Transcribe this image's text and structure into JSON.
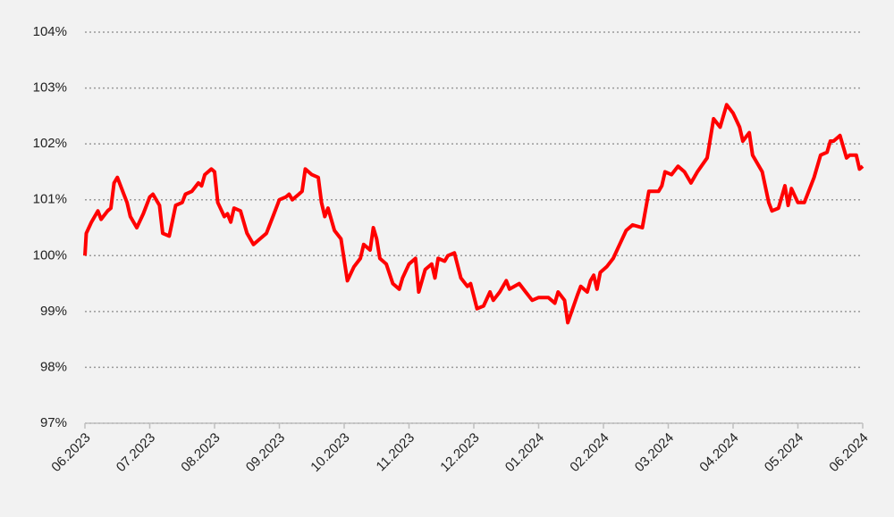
{
  "chart_data": {
    "type": "line",
    "x": [
      0,
      0.02,
      0.1,
      0.2,
      0.25,
      0.35,
      0.4,
      0.45,
      0.5,
      0.6,
      0.65,
      0.7,
      0.8,
      0.9,
      1.0,
      1.05,
      1.15,
      1.2,
      1.3,
      1.4,
      1.5,
      1.55,
      1.65,
      1.75,
      1.8,
      1.85,
      1.95,
      2.0,
      2.05,
      2.15,
      2.2,
      2.25,
      2.3,
      2.4,
      2.5,
      2.6,
      2.7,
      2.8,
      2.9,
      3.0,
      3.1,
      3.15,
      3.2,
      3.3,
      3.35,
      3.4,
      3.5,
      3.6,
      3.65,
      3.7,
      3.75,
      3.85,
      3.95,
      4.05,
      4.15,
      4.25,
      4.3,
      4.4,
      4.45,
      4.5,
      4.55,
      4.65,
      4.75,
      4.85,
      4.9,
      5.0,
      5.1,
      5.15,
      5.25,
      5.35,
      5.4,
      5.45,
      5.55,
      5.6,
      5.7,
      5.8,
      5.9,
      5.95,
      6.05,
      6.15,
      6.25,
      6.3,
      6.4,
      6.5,
      6.55,
      6.7,
      6.8,
      6.9,
      7.0,
      7.15,
      7.25,
      7.3,
      7.4,
      7.45,
      7.6,
      7.65,
      7.75,
      7.8,
      7.85,
      7.9,
      7.95,
      8.05,
      8.15,
      8.25,
      8.35,
      8.45,
      8.6,
      8.7,
      8.85,
      8.9,
      8.95,
      9.05,
      9.15,
      9.25,
      9.35,
      9.45,
      9.6,
      9.7,
      9.8,
      9.9,
      10.0,
      10.1,
      10.15,
      10.25,
      10.3,
      10.45,
      10.55,
      10.6,
      10.7,
      10.8,
      10.85,
      10.9,
      11.0,
      11.1,
      11.25,
      11.35,
      11.45,
      11.5,
      11.55,
      11.65,
      11.75,
      11.8,
      11.9,
      11.95,
      12.0
    ],
    "series": [
      {
        "color": "#ff0000",
        "values": [
          100.0,
          100.4,
          100.6,
          100.8,
          100.65,
          100.8,
          100.85,
          101.3,
          101.4,
          101.1,
          100.95,
          100.7,
          100.5,
          100.75,
          101.05,
          101.1,
          100.9,
          100.4,
          100.35,
          100.9,
          100.95,
          101.1,
          101.15,
          101.3,
          101.25,
          101.45,
          101.55,
          101.5,
          100.95,
          100.7,
          100.75,
          100.6,
          100.85,
          100.8,
          100.4,
          100.2,
          100.3,
          100.4,
          100.7,
          101.0,
          101.05,
          101.1,
          101.0,
          101.1,
          101.15,
          101.55,
          101.45,
          101.4,
          100.95,
          100.7,
          100.85,
          100.45,
          100.3,
          99.55,
          99.8,
          99.95,
          100.2,
          100.1,
          100.5,
          100.3,
          99.95,
          99.85,
          99.5,
          99.4,
          99.6,
          99.85,
          99.95,
          99.35,
          99.75,
          99.85,
          99.6,
          99.95,
          99.9,
          100.0,
          100.05,
          99.6,
          99.45,
          99.5,
          99.05,
          99.1,
          99.35,
          99.2,
          99.35,
          99.55,
          99.4,
          99.5,
          99.35,
          99.2,
          99.25,
          99.25,
          99.15,
          99.35,
          99.2,
          98.8,
          99.3,
          99.45,
          99.35,
          99.55,
          99.65,
          99.4,
          99.7,
          99.8,
          99.95,
          100.2,
          100.45,
          100.55,
          100.5,
          101.15,
          101.15,
          101.25,
          101.5,
          101.45,
          101.6,
          101.5,
          101.3,
          101.5,
          101.75,
          102.45,
          102.3,
          102.7,
          102.55,
          102.3,
          102.05,
          102.2,
          101.8,
          101.5,
          100.95,
          100.8,
          100.85,
          101.25,
          100.9,
          101.2,
          100.95,
          100.95,
          101.4,
          101.8,
          101.85,
          102.05,
          102.05,
          102.15,
          101.75,
          101.8,
          101.8,
          101.55,
          101.6
        ]
      }
    ],
    "xlim": [
      0,
      12
    ],
    "xticks": [
      {
        "value": 0,
        "label": "06.2023"
      },
      {
        "value": 1,
        "label": "07.2023"
      },
      {
        "value": 2,
        "label": "08.2023"
      },
      {
        "value": 3,
        "label": "09.2023"
      },
      {
        "value": 4,
        "label": "10.2023"
      },
      {
        "value": 5,
        "label": "11.2023"
      },
      {
        "value": 6,
        "label": "12.2023"
      },
      {
        "value": 7,
        "label": "01.2024"
      },
      {
        "value": 8,
        "label": "02.2024"
      },
      {
        "value": 9,
        "label": "03.2024"
      },
      {
        "value": 10,
        "label": "04.2024"
      },
      {
        "value": 11,
        "label": "05.2024"
      },
      {
        "value": 12,
        "label": "06.2024"
      }
    ],
    "ylim": [
      97,
      104
    ],
    "yticks": [
      {
        "value": 97,
        "label": "97%"
      },
      {
        "value": 98,
        "label": "98%"
      },
      {
        "value": 99,
        "label": "99%"
      },
      {
        "value": 100,
        "label": "100%"
      },
      {
        "value": 101,
        "label": "101%"
      },
      {
        "value": 102,
        "label": "102%"
      },
      {
        "value": 103,
        "label": "103%"
      },
      {
        "value": 104,
        "label": "104%"
      }
    ],
    "grid": true
  }
}
